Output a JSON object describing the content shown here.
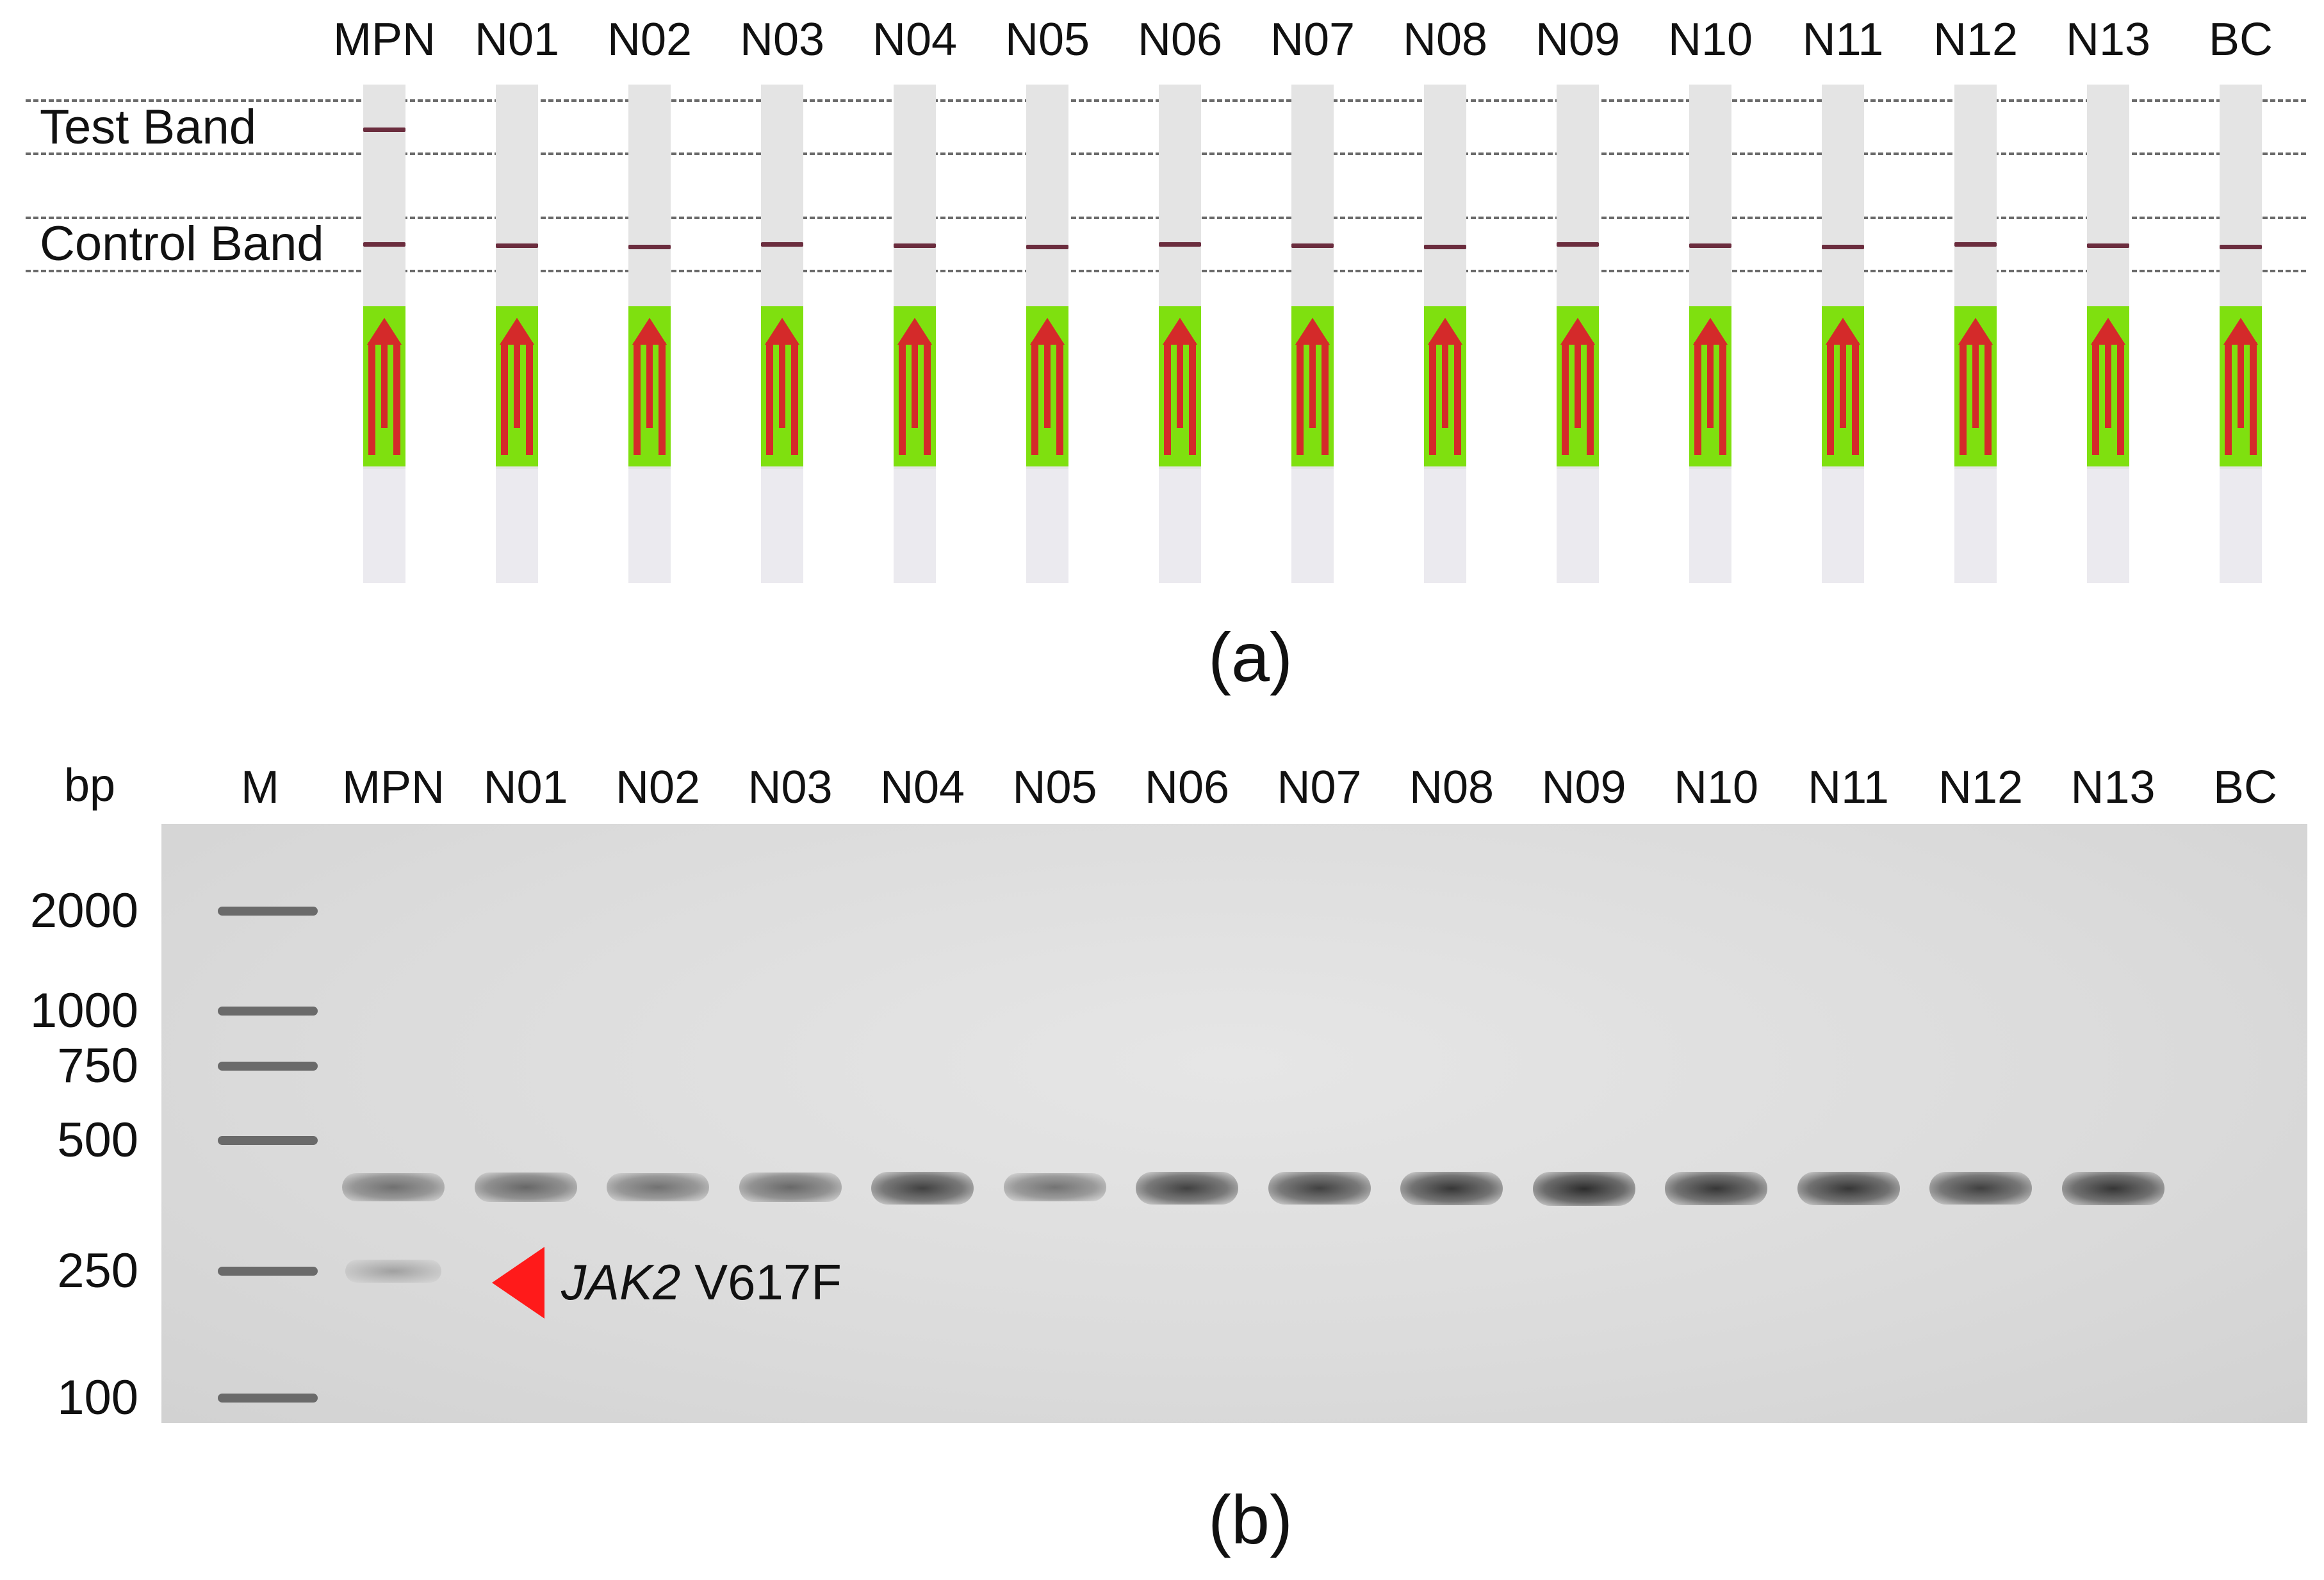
{
  "panel_a": {
    "lanes": [
      "MPN",
      "N01",
      "N02",
      "N03",
      "N04",
      "N05",
      "N06",
      "N07",
      "N08",
      "N09",
      "N10",
      "N11",
      "N12",
      "N13",
      "BC"
    ],
    "test_band_label": "Test Band",
    "control_band_label": "Control Band",
    "test_band_present": [
      true,
      false,
      false,
      false,
      false,
      false,
      false,
      false,
      false,
      false,
      false,
      false,
      false,
      false,
      false
    ],
    "control_band_present": [
      true,
      true,
      true,
      true,
      true,
      true,
      true,
      true,
      true,
      true,
      true,
      true,
      true,
      true,
      true
    ],
    "caption": "(a)",
    "colors": {
      "strip": "#e4e4e4",
      "band": "#6b2d3e",
      "green_zone": "#7fe00f",
      "arrow": "#d42a2a"
    }
  },
  "panel_b": {
    "unit_label": "bp",
    "marker_label": "M",
    "lanes": [
      "MPN",
      "N01",
      "N02",
      "N03",
      "N04",
      "N05",
      "N06",
      "N07",
      "N08",
      "N09",
      "N10",
      "N11",
      "N12",
      "N13",
      "BC"
    ],
    "ladder_sizes": [
      "2000",
      "1000",
      "750",
      "500",
      "250",
      "100"
    ],
    "main_band_intensity": [
      0.55,
      0.6,
      0.55,
      0.6,
      0.8,
      0.55,
      0.8,
      0.8,
      0.85,
      0.9,
      0.85,
      0.85,
      0.8,
      0.85,
      0
    ],
    "mutant_band_intensity": [
      0.18,
      0,
      0,
      0,
      0,
      0,
      0,
      0,
      0,
      0,
      0,
      0,
      0,
      0,
      0
    ],
    "annotation": {
      "gene": "JAK2",
      "mutation": "V617F",
      "arrow_color": "#ff1a1a"
    },
    "caption": "(b)"
  }
}
